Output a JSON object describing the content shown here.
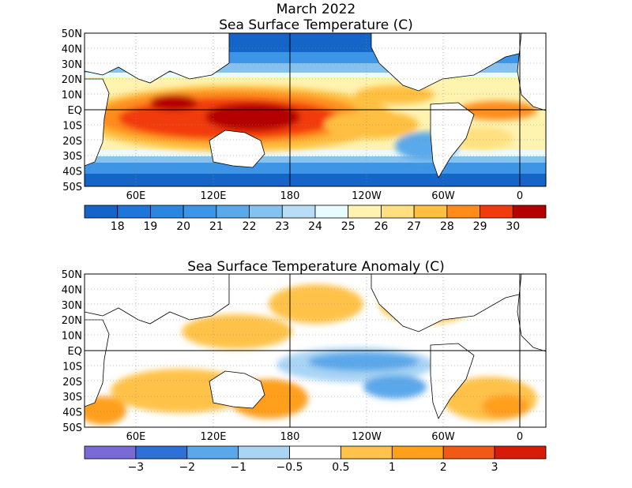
{
  "title_line1": "March 2022",
  "title_line2": "Sea Surface Temperature (C)",
  "title_anomaly": "Sea Surface Temperature Anomaly (C)",
  "lat_labels": [
    "50N",
    "40N",
    "30N",
    "20N",
    "10N",
    "EQ",
    "10S",
    "20S",
    "30S",
    "40S",
    "50S"
  ],
  "lon_labels": [
    "60E",
    "120E",
    "180",
    "120W",
    "60W",
    "0"
  ],
  "sst_colorbar": {
    "colors": [
      "#1565c8",
      "#1f75d9",
      "#2b86e0",
      "#3c95e6",
      "#5aa9ea",
      "#86c2f0",
      "#b8ddf5",
      "#e8fbff",
      "#fff3b0",
      "#ffe080",
      "#ffbf40",
      "#ff8c1a",
      "#f23a0f",
      "#b50000"
    ],
    "labels": [
      "18",
      "19",
      "20",
      "21",
      "22",
      "23",
      "24",
      "25",
      "26",
      "27",
      "28",
      "29",
      "30"
    ]
  },
  "anom_colorbar": {
    "colors": [
      "#7a6ad6",
      "#2f6fd8",
      "#5aa7ea",
      "#a9d4f4",
      "#ffffff",
      "#ffc24a",
      "#ff9f1a",
      "#f05a14",
      "#d81a0a"
    ],
    "labels": [
      "−3",
      "−2",
      "−1",
      "−0.5",
      "0.5",
      "1",
      "2",
      "3"
    ]
  }
}
